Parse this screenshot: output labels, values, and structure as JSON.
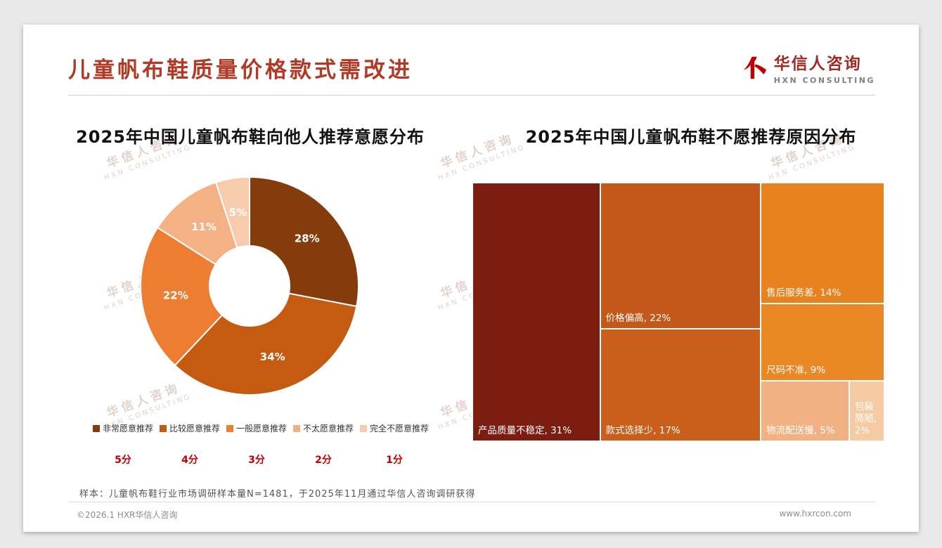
{
  "page": {
    "title": "儿童帆布鞋质量价格款式需改进",
    "note": "样本：儿童帆布鞋行业市场调研样本量N=1481，于2025年11月通过华信人咨询调研获得",
    "footer_left": "©2026.1 HXR华信人咨询",
    "footer_right": "www.hxrcon.com"
  },
  "logo": {
    "name_cn": "华信人咨询",
    "name_en": "HXN CONSULTING"
  },
  "watermark": {
    "line1": "华信人咨询",
    "line2": "HXN CONSULTING"
  },
  "chart_data": [
    {
      "type": "pie",
      "subtype": "donut",
      "title": "2025年中国儿童帆布鞋向他人推荐意愿分布",
      "unit": "%",
      "legend_position": "bottom",
      "slices": [
        {
          "label": "非常愿意推荐",
          "score": "5分",
          "value": 28,
          "color": "#843C0C"
        },
        {
          "label": "比较愿意推荐",
          "score": "4分",
          "value": 34,
          "color": "#C55A11"
        },
        {
          "label": "一般愿意推荐",
          "score": "3分",
          "value": 22,
          "color": "#ED7D31"
        },
        {
          "label": "不太愿意推荐",
          "score": "2分",
          "value": 11,
          "color": "#F4B183"
        },
        {
          "label": "完全不愿意推荐",
          "score": "1分",
          "value": 5,
          "color": "#F8CBAD"
        }
      ]
    },
    {
      "type": "treemap",
      "title": "2025年中国儿童帆布鞋不愿推荐原因分布",
      "unit": "%",
      "items": [
        {
          "label": "产品质量不稳定",
          "value": 31,
          "color": "#7D1D12"
        },
        {
          "label": "价格偏高",
          "value": 22,
          "color": "#C4581A"
        },
        {
          "label": "款式选择少",
          "value": 17,
          "color": "#C95F1B"
        },
        {
          "label": "售后服务差",
          "value": 14,
          "color": "#E8821E"
        },
        {
          "label": "尺码不准",
          "value": 9,
          "color": "#EA8826"
        },
        {
          "label": "物流配送慢",
          "value": 5,
          "color": "#F2B183"
        },
        {
          "label": "包装简陋",
          "value": 2,
          "color": "#F6CBA4"
        }
      ]
    }
  ]
}
